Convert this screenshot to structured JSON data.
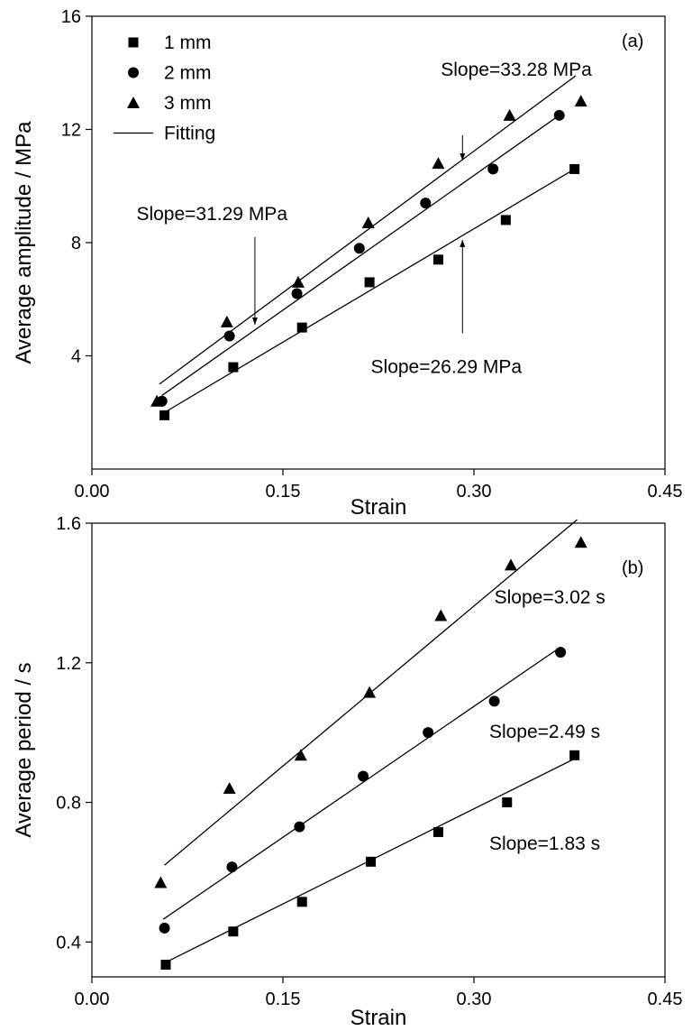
{
  "chart_data": [
    {
      "type": "scatter",
      "panel_label": "(a)",
      "xlabel": "Strain",
      "ylabel": "Average amplitude / MPa",
      "xlim": [
        0,
        0.45
      ],
      "ylim": [
        0,
        16
      ],
      "xticks": [
        0.0,
        0.15,
        0.3,
        0.45
      ],
      "xtick_labels": [
        "0.00",
        "0.15",
        "0.30",
        "0.45"
      ],
      "yticks": [
        4,
        8,
        12,
        16
      ],
      "ytick_labels": [
        "4",
        "8",
        "12",
        "16"
      ],
      "legend": {
        "position": "top-left",
        "entries": [
          {
            "label": "1 mm",
            "marker": "square"
          },
          {
            "label": "2 mm",
            "marker": "circle"
          },
          {
            "label": "3 mm",
            "marker": "triangle"
          },
          {
            "label": "Fitting",
            "marker": "line"
          }
        ]
      },
      "series": [
        {
          "name": "1 mm",
          "marker": "square",
          "x": [
            0.057,
            0.111,
            0.165,
            0.218,
            0.272,
            0.325,
            0.379
          ],
          "y": [
            1.9,
            3.6,
            5.0,
            6.6,
            7.4,
            8.8,
            10.6
          ],
          "fit": {
            "x": [
              0.057,
              0.379
            ],
            "y": [
              2.0,
              10.6
            ]
          }
        },
        {
          "name": "2 mm",
          "marker": "circle",
          "x": [
            0.055,
            0.108,
            0.161,
            0.21,
            0.262,
            0.315,
            0.367
          ],
          "y": [
            2.4,
            4.7,
            6.2,
            7.8,
            9.4,
            10.6,
            12.5
          ],
          "fit": {
            "x": [
              0.055,
              0.367
            ],
            "y": [
              2.6,
              12.5
            ]
          }
        },
        {
          "name": "3 mm",
          "marker": "triangle",
          "x": [
            0.051,
            0.106,
            0.162,
            0.217,
            0.272,
            0.328,
            0.384
          ],
          "y": [
            2.4,
            5.2,
            6.6,
            8.7,
            10.8,
            12.5,
            13.0
          ],
          "fit": {
            "x": [
              0.053,
              0.38
            ],
            "y": [
              3.0,
              13.9
            ]
          }
        }
      ],
      "annotations": [
        {
          "text": "Slope=33.28 MPa",
          "at": [
            0.274,
            13.9
          ],
          "arrow_from": [
            0.291,
            11.8
          ],
          "arrow_to": [
            0.291,
            10.9
          ]
        },
        {
          "text": "Slope=31.29 MPa",
          "at": [
            0.035,
            8.8
          ],
          "arrow_from": [
            0.128,
            8.2
          ],
          "arrow_to": [
            0.128,
            5.1
          ]
        },
        {
          "text": "Slope=26.29 MPa",
          "at": [
            0.219,
            3.4
          ],
          "arrow_from": [
            0.291,
            4.8
          ],
          "arrow_to": [
            0.291,
            8.1
          ]
        }
      ]
    },
    {
      "type": "scatter",
      "panel_label": "(b)",
      "xlabel": "Strain",
      "ylabel": "Average period / s",
      "xlim": [
        0,
        0.45
      ],
      "ylim": [
        0.3,
        1.6
      ],
      "xticks": [
        0.0,
        0.15,
        0.3,
        0.45
      ],
      "xtick_labels": [
        "0.00",
        "0.15",
        "0.30",
        "0.45"
      ],
      "yticks": [
        0.4,
        0.8,
        1.2,
        1.6
      ],
      "ytick_labels": [
        "0.4",
        "0.8",
        "1.2",
        "1.6"
      ],
      "series": [
        {
          "name": "1 mm",
          "marker": "square",
          "x": [
            0.058,
            0.111,
            0.165,
            0.219,
            0.272,
            0.326,
            0.379
          ],
          "y": [
            0.335,
            0.43,
            0.515,
            0.63,
            0.715,
            0.8,
            0.935
          ],
          "fit": {
            "x": [
              0.057,
              0.379
            ],
            "y": [
              0.34,
              0.925
            ]
          }
        },
        {
          "name": "2 mm",
          "marker": "circle",
          "x": [
            0.057,
            0.11,
            0.163,
            0.213,
            0.264,
            0.316,
            0.368
          ],
          "y": [
            0.44,
            0.615,
            0.73,
            0.875,
            1.0,
            1.09,
            1.23
          ],
          "fit": {
            "x": [
              0.056,
              0.368
            ],
            "y": [
              0.465,
              1.245
            ]
          }
        },
        {
          "name": "3 mm",
          "marker": "triangle",
          "x": [
            0.054,
            0.108,
            0.164,
            0.218,
            0.274,
            0.329,
            0.384
          ],
          "y": [
            0.57,
            0.84,
            0.935,
            1.115,
            1.335,
            1.48,
            1.545
          ],
          "fit": {
            "x": [
              0.057,
              0.381
            ],
            "y": [
              0.62,
              1.61
            ]
          }
        }
      ],
      "annotations": [
        {
          "text": "Slope=3.02 s",
          "at": [
            0.316,
            1.37
          ]
        },
        {
          "text": "Slope=2.49 s",
          "at": [
            0.312,
            0.985
          ]
        },
        {
          "text": "Slope=1.83 s",
          "at": [
            0.312,
            0.665
          ]
        }
      ]
    }
  ]
}
